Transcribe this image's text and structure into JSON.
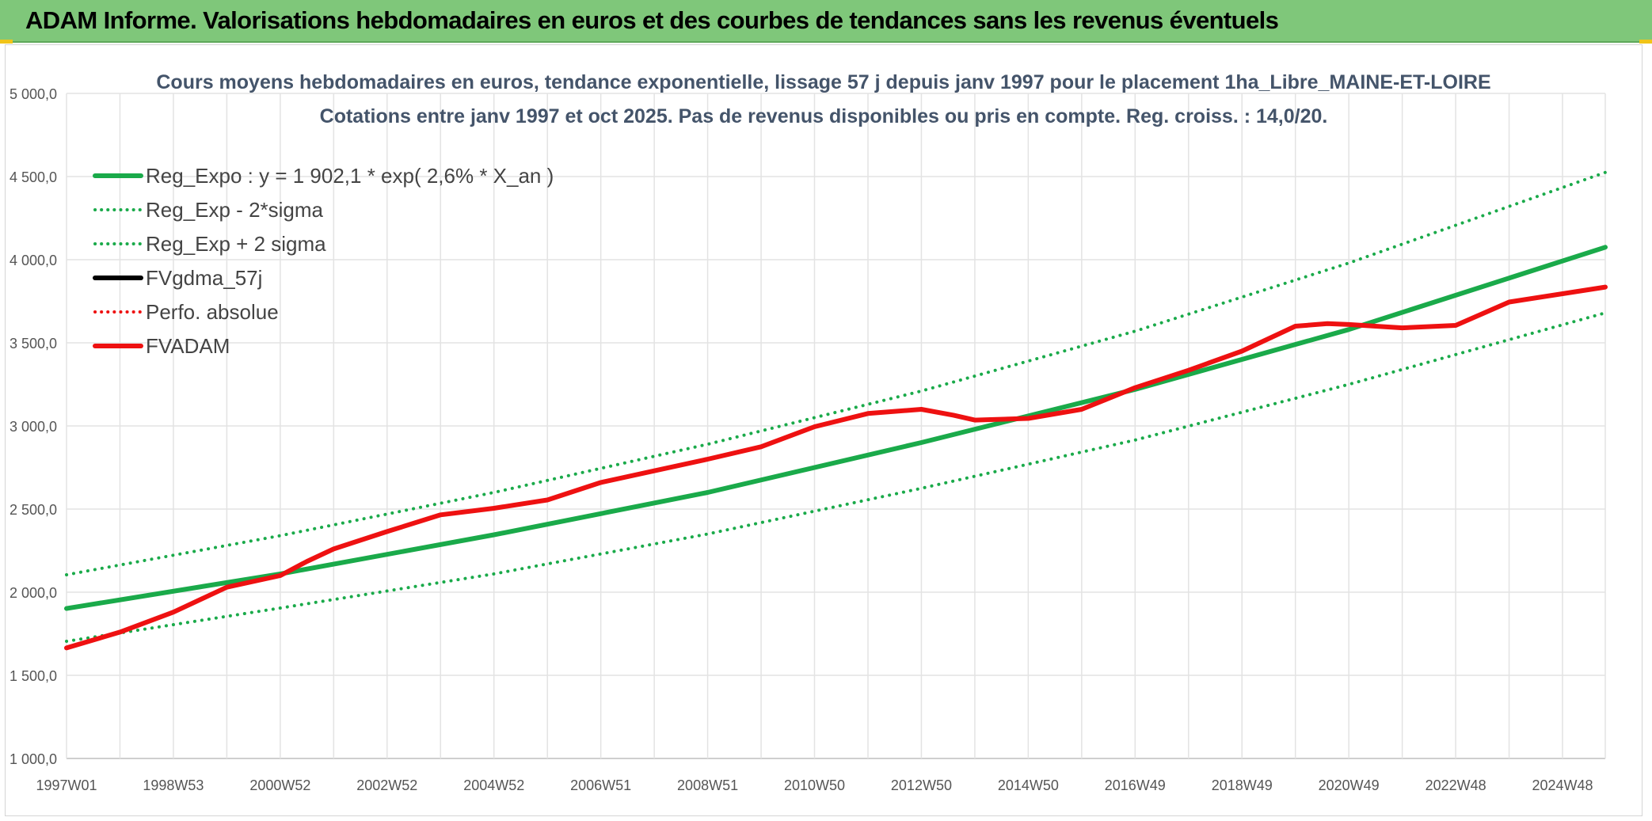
{
  "header": {
    "title": "ADAM Informe. Valorisations hebdomadaires en euros et des courbes de tendances sans les revenus éventuels"
  },
  "colors": {
    "header_bg": "#7fc77a",
    "reg_green": "#1aaa4a",
    "fv_red": "#ee1111",
    "fv_black": "#000000"
  },
  "chart_data": {
    "type": "line",
    "title": "Cours moyens hebdomadaires en euros, tendance exponentielle, lissage 57 j depuis janv 1997 pour le placement 1ha_Libre_MAINE-ET-LOIRE",
    "subtitle": "Cotations entre janv 1997 et oct 2025. Pas de revenus disponibles ou pris en compte. Reg. croiss. : 14,0/20.",
    "xlabel": "",
    "ylabel": "",
    "xlim": [
      1997.0,
      2025.8
    ],
    "ylim": [
      1000,
      5000
    ],
    "yticks": [
      "1 000,0",
      "1 500,0",
      "2 000,0",
      "2 500,0",
      "3 000,0",
      "3 500,0",
      "4 000,0",
      "4 500,0",
      "5 000,0"
    ],
    "ytick_values": [
      1000,
      1500,
      2000,
      2500,
      3000,
      3500,
      4000,
      4500,
      5000
    ],
    "xticks": [
      "1997W01",
      "1998W53",
      "2000W52",
      "2002W52",
      "2004W52",
      "2006W51",
      "2008W51",
      "2010W50",
      "2012W50",
      "2014W50",
      "2016W49",
      "2018W49",
      "2020W49",
      "2022W48",
      "2024W48"
    ],
    "xtick_values": [
      1997.0,
      1999.0,
      2001.0,
      2003.0,
      2005.0,
      2007.0,
      2009.0,
      2011.0,
      2013.0,
      2015.0,
      2017.0,
      2019.0,
      2021.0,
      2023.0,
      2025.0
    ],
    "grid": true,
    "legend_position": "top-left",
    "legend": [
      {
        "label": "Reg_Expo : y = 1 902,1 * exp( 2,6% *  X_an )",
        "color": "#1aaa4a",
        "style": "solid"
      },
      {
        "label": "Reg_Exp - 2*sigma",
        "color": "#1aaa4a",
        "style": "dotted"
      },
      {
        "label": "Reg_Exp + 2 sigma",
        "color": "#1aaa4a",
        "style": "dotted"
      },
      {
        "label": "FVgdma_57j",
        "color": "#000000",
        "style": "solid"
      },
      {
        "label": "Perfo. absolue",
        "color": "#ee1111",
        "style": "dotted"
      },
      {
        "label": "FVADAM",
        "color": "#ee1111",
        "style": "solid"
      }
    ],
    "series": [
      {
        "name": "Reg_Expo : y = 1 902,1 * exp( 2,6% *  X_an )",
        "color": "#1aaa4a",
        "style": "solid",
        "width": 6,
        "x": [
          1997.0,
          2001.0,
          2005.0,
          2009.0,
          2013.0,
          2017.0,
          2021.0,
          2025.8
        ],
        "y": [
          1902,
          2110,
          2345,
          2600,
          2900,
          3220,
          3580,
          4075
        ]
      },
      {
        "name": "Reg_Exp - 2*sigma",
        "color": "#1aaa4a",
        "style": "dotted",
        "width": 4,
        "x": [
          1997.0,
          2001.0,
          2005.0,
          2009.0,
          2013.0,
          2017.0,
          2021.0,
          2025.8
        ],
        "y": [
          1705,
          1905,
          2110,
          2350,
          2625,
          2915,
          3250,
          3680
        ]
      },
      {
        "name": "Reg_Exp + 2 sigma",
        "color": "#1aaa4a",
        "style": "dotted",
        "width": 4,
        "x": [
          1997.0,
          2001.0,
          2005.0,
          2009.0,
          2013.0,
          2017.0,
          2021.0,
          2025.8
        ],
        "y": [
          2105,
          2340,
          2600,
          2890,
          3210,
          3570,
          3980,
          4525
        ]
      },
      {
        "name": "FVADAM",
        "color": "#ee1111",
        "style": "solid",
        "width": 6,
        "x": [
          1997.0,
          1998.0,
          1999.0,
          2000.0,
          2001.0,
          2001.5,
          2002.0,
          2003.0,
          2004.0,
          2005.0,
          2006.0,
          2007.0,
          2008.0,
          2009.0,
          2010.0,
          2011.0,
          2012.0,
          2013.0,
          2013.6,
          2014.0,
          2015.0,
          2016.0,
          2017.0,
          2018.0,
          2019.0,
          2020.0,
          2020.6,
          2021.0,
          2022.0,
          2023.0,
          2024.0,
          2025.8
        ],
        "y": [
          1665,
          1760,
          1880,
          2030,
          2100,
          2185,
          2260,
          2365,
          2465,
          2505,
          2555,
          2660,
          2730,
          2800,
          2875,
          2995,
          3075,
          3100,
          3065,
          3035,
          3045,
          3100,
          3230,
          3335,
          3450,
          3600,
          3615,
          3610,
          3590,
          3605,
          3745,
          3835
        ]
      }
    ]
  }
}
